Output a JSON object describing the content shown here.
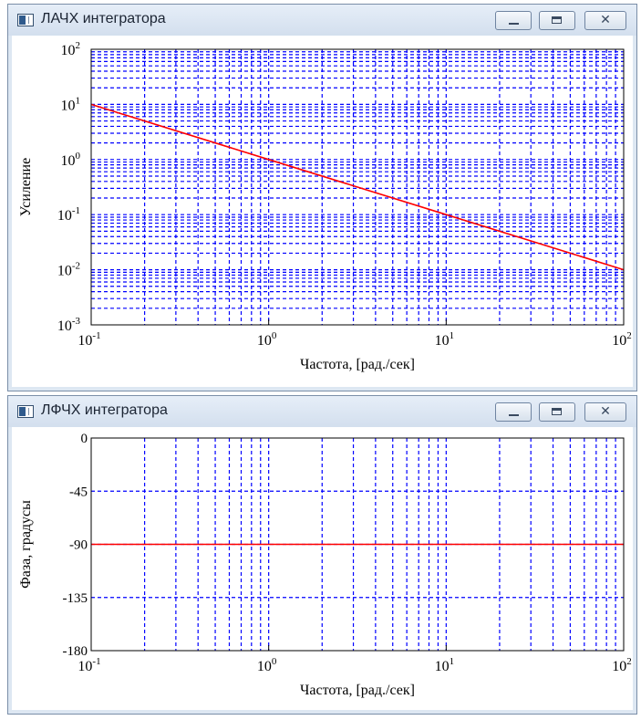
{
  "windows": [
    {
      "title": "ЛАЧХ интегратора",
      "close_glyph": "✕"
    },
    {
      "title": "ЛФЧХ интегратора",
      "close_glyph": "✕"
    }
  ],
  "chart_data": [
    {
      "type": "line",
      "title": "ЛАЧХ интегратора",
      "xlabel": "Частота, [рад./сек]",
      "ylabel": "Усиление",
      "x_scale": "log",
      "y_scale": "log",
      "xlim": [
        0.1,
        100
      ],
      "ylim": [
        0.001,
        100
      ],
      "x_ticks": [
        {
          "base": "10",
          "exp": "-1"
        },
        {
          "base": "10",
          "exp": "0"
        },
        {
          "base": "10",
          "exp": "1"
        },
        {
          "base": "10",
          "exp": "2"
        }
      ],
      "y_ticks": [
        {
          "base": "10",
          "exp": "-3"
        },
        {
          "base": "10",
          "exp": "-2"
        },
        {
          "base": "10",
          "exp": "-1"
        },
        {
          "base": "10",
          "exp": "0"
        },
        {
          "base": "10",
          "exp": "1"
        },
        {
          "base": "10",
          "exp": "2"
        }
      ],
      "grid": true,
      "grid_color": "#0000ff",
      "series": [
        {
          "x": [
            0.1,
            1,
            10,
            100
          ],
          "y": [
            10,
            1,
            0.1,
            0.01
          ],
          "color": "#ff0000"
        }
      ]
    },
    {
      "type": "line",
      "title": "ЛФЧХ интегратора",
      "xlabel": "Частота, [рад./сек]",
      "ylabel": "Фаза, градусы",
      "x_scale": "log",
      "y_scale": "linear",
      "xlim": [
        0.1,
        100
      ],
      "ylim": [
        -180,
        0
      ],
      "x_ticks": [
        {
          "base": "10",
          "exp": "-1"
        },
        {
          "base": "10",
          "exp": "0"
        },
        {
          "base": "10",
          "exp": "1"
        },
        {
          "base": "10",
          "exp": "2"
        }
      ],
      "y_ticks": [
        "0",
        "-45",
        "-90",
        "-135",
        "-180"
      ],
      "grid": true,
      "grid_color": "#0000ff",
      "series": [
        {
          "x": [
            0.1,
            100
          ],
          "y": [
            -90,
            -90
          ],
          "color": "#ff0000"
        }
      ]
    }
  ]
}
